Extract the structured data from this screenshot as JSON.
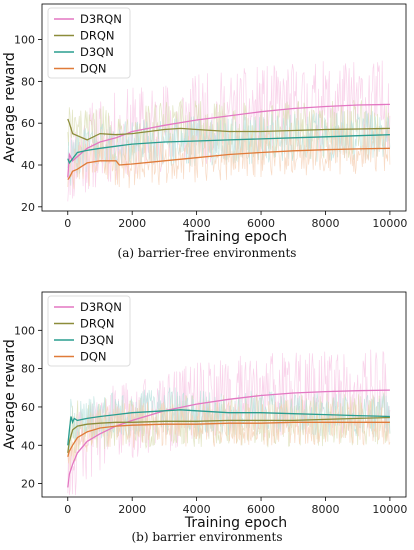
{
  "colors": {
    "D3RQN": "#e377c2",
    "DRQN": "#8c8c3a",
    "D3QN": "#2a9d8f",
    "DQN": "#e07b39",
    "axis": "#000000",
    "noise_D3RQN": "#f7c6e4",
    "noise_DRQN": "#d8dcb0",
    "noise_D3QN": "#b7e0dc",
    "noise_DQN": "#f6cfb3"
  },
  "chart_data": [
    {
      "type": "line",
      "caption": "(a) barrier-free environments",
      "xlabel": "Training epoch",
      "ylabel": "Average reward",
      "xlim": [
        -800,
        10500
      ],
      "ylim": [
        18,
        117
      ],
      "xticks": [
        0,
        2000,
        4000,
        6000,
        8000,
        10000
      ],
      "yticks": [
        20,
        40,
        60,
        80,
        100
      ],
      "legend": "top-left",
      "series": [
        {
          "name": "D3RQN",
          "x": [
            0,
            50,
            150,
            300,
            600,
            1000,
            1500,
            2000,
            3000,
            4000,
            5000,
            6000,
            7000,
            8000,
            9000,
            10000
          ],
          "values": [
            34,
            45,
            42,
            44,
            48,
            51,
            53,
            56,
            59,
            61.5,
            63.5,
            65.5,
            67,
            68,
            68.7,
            69
          ]
        },
        {
          "name": "DRQN",
          "x": [
            0,
            50,
            150,
            300,
            600,
            1000,
            1500,
            2000,
            3000,
            3500,
            4000,
            5000,
            6000,
            7000,
            8000,
            9000,
            10000
          ],
          "values": [
            62,
            60,
            55,
            54,
            52,
            55,
            54.5,
            55,
            57,
            57.5,
            57,
            56,
            56,
            56.5,
            57,
            57.2,
            57.5
          ]
        },
        {
          "name": "D3QN",
          "x": [
            0,
            50,
            150,
            300,
            600,
            1000,
            1500,
            2000,
            3000,
            4000,
            5000,
            6000,
            7000,
            8000,
            9000,
            10000
          ],
          "values": [
            43,
            41,
            43,
            46,
            47,
            48,
            49,
            50,
            51,
            51.5,
            52,
            52.5,
            53,
            53.5,
            54,
            54.5
          ]
        },
        {
          "name": "DQN",
          "x": [
            0,
            50,
            150,
            300,
            600,
            1000,
            1500,
            1600,
            2000,
            3000,
            4000,
            5000,
            6000,
            7000,
            8000,
            9000,
            10000
          ],
          "values": [
            33,
            34,
            37,
            38,
            41,
            42,
            42,
            40,
            40.5,
            42,
            43.5,
            45,
            46,
            46.8,
            47.3,
            47.7,
            48
          ]
        }
      ]
    },
    {
      "type": "line",
      "caption": "(b) barrier environments",
      "xlabel": "Training epoch",
      "ylabel": "Average reward",
      "xlim": [
        -800,
        10500
      ],
      "ylim": [
        13,
        120
      ],
      "xticks": [
        0,
        2000,
        4000,
        6000,
        8000,
        10000
      ],
      "yticks": [
        20,
        40,
        60,
        80,
        100
      ],
      "legend": "top-left",
      "series": [
        {
          "name": "D3RQN",
          "x": [
            0,
            50,
            150,
            300,
            600,
            1000,
            1500,
            2000,
            2500,
            3000,
            4000,
            5000,
            6000,
            7000,
            8000,
            9000,
            10000
          ],
          "values": [
            18,
            25,
            30,
            36,
            42,
            46,
            50,
            53,
            55.5,
            58,
            61.5,
            64,
            66,
            67.3,
            68,
            68.5,
            68.8
          ]
        },
        {
          "name": "DRQN",
          "x": [
            0,
            50,
            150,
            300,
            600,
            1000,
            1500,
            2000,
            3000,
            4000,
            5000,
            6000,
            7000,
            8000,
            9000,
            10000
          ],
          "values": [
            36,
            42,
            48,
            50,
            51,
            51.5,
            52,
            52,
            52.5,
            52.5,
            53,
            53,
            53,
            53.5,
            54,
            54.5
          ]
        },
        {
          "name": "D3QN",
          "x": [
            0,
            50,
            100,
            150,
            200,
            300,
            600,
            1000,
            1500,
            2000,
            3000,
            3500,
            4000,
            5000,
            6000,
            7000,
            8000,
            9000,
            10000
          ],
          "values": [
            40,
            48,
            55,
            52,
            54,
            53,
            54,
            55,
            56,
            57,
            58,
            58.5,
            58,
            57,
            57,
            56.5,
            56,
            55.5,
            55
          ]
        },
        {
          "name": "DQN",
          "x": [
            0,
            50,
            150,
            300,
            600,
            1000,
            1500,
            2000,
            3000,
            4000,
            5000,
            6000,
            7000,
            8000,
            9000,
            10000
          ],
          "values": [
            34,
            37,
            40,
            44,
            47,
            49,
            50,
            50.5,
            51,
            51,
            51.5,
            51.5,
            52,
            52,
            52,
            52
          ]
        }
      ]
    }
  ]
}
